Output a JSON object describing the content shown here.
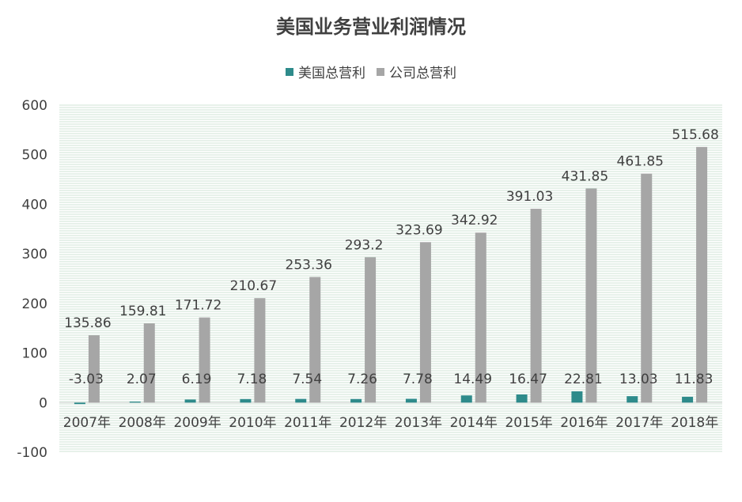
{
  "chart_data": {
    "type": "bar",
    "title": "美国业务营业利润情况",
    "categories": [
      "2007年",
      "2008年",
      "2009年",
      "2010年",
      "2011年",
      "2012年",
      "2013年",
      "2014年",
      "2015年",
      "2016年",
      "2017年",
      "2018年"
    ],
    "series": [
      {
        "name": "美国总营利",
        "color": "#2e8b8b",
        "values": [
          -3.03,
          2.07,
          6.19,
          7.18,
          7.54,
          7.26,
          7.78,
          14.49,
          16.47,
          22.81,
          13.03,
          11.83
        ],
        "labels": [
          "-3.03",
          "2.07",
          "6.19",
          "7.18",
          "7.54",
          "7.26",
          "7.78",
          "14.49",
          "16.47",
          "22.81",
          "13.03",
          "11.83"
        ]
      },
      {
        "name": "公司总营利",
        "color": "#a6a6a6",
        "values": [
          135.86,
          159.81,
          171.72,
          210.67,
          253.36,
          293.2,
          323.69,
          342.92,
          391.03,
          431.85,
          461.85,
          515.68
        ],
        "labels": [
          "135.86",
          "159.81",
          "171.72",
          "210.67",
          "253.36",
          "293.2",
          "323.69",
          "342.92",
          "391.03",
          "431.85",
          "461.85",
          "515.68"
        ]
      }
    ],
    "ylim": [
      -100,
      600
    ],
    "yticks": [
      "-100",
      "0",
      "100",
      "200",
      "300",
      "400",
      "500",
      "600"
    ],
    "ytick_values": [
      -100,
      0,
      100,
      200,
      300,
      400,
      500,
      600
    ],
    "legend_position": "top-center",
    "grid_color": "#cfe3d6"
  }
}
